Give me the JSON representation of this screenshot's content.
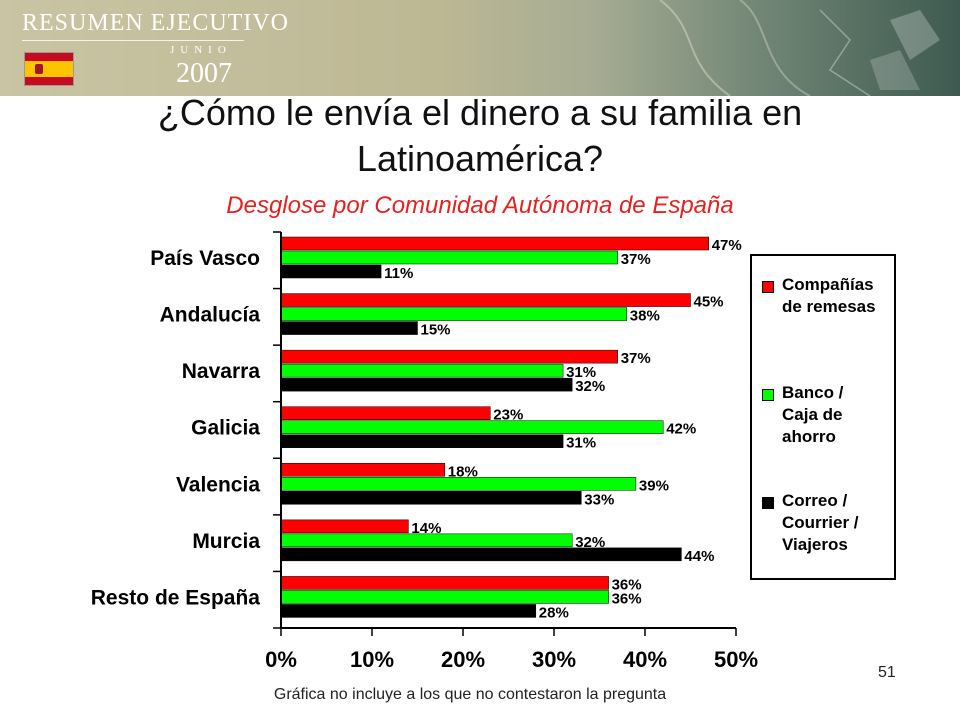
{
  "banner": {
    "title": "RESUMEN EJECUTIVO",
    "month": "JUNIO",
    "year": "2007"
  },
  "colors": {
    "remesas": "#ff0000",
    "banco": "#00ff00",
    "correo": "#000000"
  },
  "slide": {
    "title": "¿Cómo le envía el dinero a su familia en Latinoamérica?",
    "subtitle": "Desglose por Comunidad Autónoma de España",
    "footnote": "Gráfica no incluye a los que no contestaron la pregunta",
    "page_number": "51"
  },
  "chart_data": {
    "type": "bar",
    "orientation": "horizontal",
    "categories": [
      "País Vasco",
      "Andalucía",
      "Navarra",
      "Galicia",
      "Valencia",
      "Murcia",
      "Resto de España"
    ],
    "series": [
      {
        "name": "Compañías\nde remesas",
        "color": "#ff0000",
        "values": [
          47,
          45,
          37,
          23,
          18,
          14,
          36
        ]
      },
      {
        "name": "Banco /\nCaja de\nahorro",
        "color": "#00ff00",
        "values": [
          37,
          38,
          31,
          42,
          39,
          32,
          36
        ]
      },
      {
        "name": "Correo /\nCourrier /\nViajeros",
        "color": "#000000",
        "values": [
          11,
          15,
          32,
          31,
          33,
          44,
          28
        ]
      }
    ],
    "xlim": [
      0,
      50
    ],
    "xticks": [
      "0%",
      "10%",
      "20%",
      "30%",
      "40%",
      "50%"
    ],
    "legend_position": "right",
    "grid": false
  }
}
